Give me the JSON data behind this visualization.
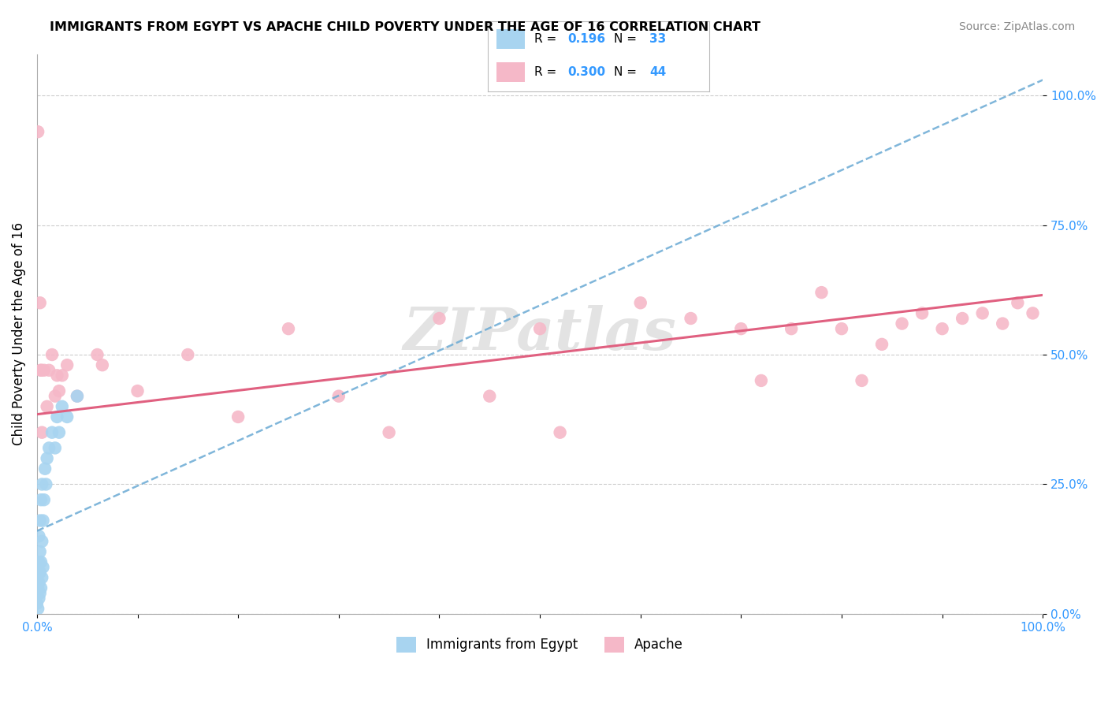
{
  "title": "IMMIGRANTS FROM EGYPT VS APACHE CHILD POVERTY UNDER THE AGE OF 16 CORRELATION CHART",
  "source": "Source: ZipAtlas.com",
  "ylabel": "Child Poverty Under the Age of 16",
  "legend_blue_R": "0.196",
  "legend_blue_N": "33",
  "legend_pink_R": "0.300",
  "legend_pink_N": "44",
  "blue_color": "#A8D4F0",
  "pink_color": "#F5B8C8",
  "blue_line_color": "#6AAAD4",
  "pink_line_color": "#E06080",
  "watermark": "ZIPatlas",
  "blue_scatter_x": [
    0.0,
    0.0,
    0.001,
    0.001,
    0.001,
    0.002,
    0.002,
    0.002,
    0.002,
    0.003,
    0.003,
    0.003,
    0.003,
    0.004,
    0.004,
    0.004,
    0.005,
    0.005,
    0.005,
    0.006,
    0.006,
    0.007,
    0.008,
    0.009,
    0.01,
    0.012,
    0.015,
    0.018,
    0.02,
    0.022,
    0.025,
    0.03,
    0.04
  ],
  "blue_scatter_y": [
    0.02,
    0.04,
    0.01,
    0.05,
    0.08,
    0.03,
    0.06,
    0.1,
    0.15,
    0.04,
    0.08,
    0.12,
    0.18,
    0.05,
    0.1,
    0.22,
    0.07,
    0.14,
    0.25,
    0.09,
    0.18,
    0.22,
    0.28,
    0.25,
    0.3,
    0.32,
    0.35,
    0.32,
    0.38,
    0.35,
    0.4,
    0.38,
    0.42
  ],
  "pink_scatter_x": [
    0.001,
    0.003,
    0.004,
    0.004,
    0.005,
    0.007,
    0.01,
    0.012,
    0.015,
    0.018,
    0.02,
    0.022,
    0.025,
    0.03,
    0.04,
    0.06,
    0.065,
    0.1,
    0.15,
    0.2,
    0.25,
    0.3,
    0.35,
    0.4,
    0.45,
    0.5,
    0.52,
    0.6,
    0.65,
    0.7,
    0.72,
    0.75,
    0.78,
    0.8,
    0.82,
    0.84,
    0.86,
    0.88,
    0.9,
    0.92,
    0.94,
    0.96,
    0.975,
    0.99
  ],
  "pink_scatter_y": [
    0.93,
    0.6,
    0.47,
    0.47,
    0.35,
    0.47,
    0.4,
    0.47,
    0.5,
    0.42,
    0.46,
    0.43,
    0.46,
    0.48,
    0.42,
    0.5,
    0.48,
    0.43,
    0.5,
    0.38,
    0.55,
    0.42,
    0.35,
    0.57,
    0.42,
    0.55,
    0.35,
    0.6,
    0.57,
    0.55,
    0.45,
    0.55,
    0.62,
    0.55,
    0.45,
    0.52,
    0.56,
    0.58,
    0.55,
    0.57,
    0.58,
    0.56,
    0.6,
    0.58
  ],
  "blue_trend_x0": 0.0,
  "blue_trend_y0": 0.16,
  "blue_trend_x1": 1.0,
  "blue_trend_y1": 1.03,
  "pink_trend_x0": 0.0,
  "pink_trend_y0": 0.385,
  "pink_trend_x1": 1.0,
  "pink_trend_y1": 0.615,
  "xlim": [
    0,
    1.0
  ],
  "ylim": [
    0,
    1.08
  ],
  "ytick_values": [
    0,
    0.25,
    0.5,
    0.75,
    1.0
  ],
  "ytick_labels": [
    "0.0%",
    "25.0%",
    "50.0%",
    "75.0%",
    "100.0%"
  ]
}
